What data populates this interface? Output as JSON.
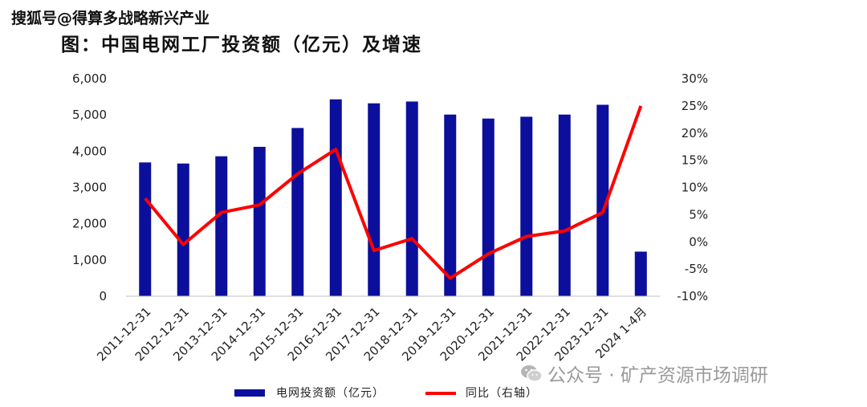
{
  "watermark_top": "搜狐号@得算多战略新兴产业",
  "watermark_bottom": "公众号 · 矿产资源市场调研",
  "chart_data": {
    "type": "bar",
    "title": "图：中国电网工厂投资额（亿元）及增速",
    "categories": [
      "2011-12-31",
      "2012-12-31",
      "2013-12-31",
      "2014-12-31",
      "2015-12-31",
      "2016-12-31",
      "2017-12-31",
      "2018-12-31",
      "2019-12-31",
      "2020-12-31",
      "2021-12-31",
      "2022-12-31",
      "2023-12-31",
      "2024 1-4月"
    ],
    "series": [
      {
        "name": "电网投资额（亿元）",
        "type": "bar",
        "axis": "left",
        "color": "#0b0f9c",
        "values": [
          3690,
          3660,
          3860,
          4120,
          4640,
          5430,
          5320,
          5370,
          5010,
          4900,
          4950,
          5010,
          5280,
          1230
        ]
      },
      {
        "name": "同比（右轴）",
        "type": "line",
        "axis": "right",
        "color": "#ff0000",
        "values": [
          8.0,
          -0.5,
          5.4,
          6.8,
          12.5,
          17.0,
          -1.6,
          0.6,
          -6.7,
          -2.2,
          1.0,
          2.0,
          5.4,
          25.0
        ]
      }
    ],
    "y_left": {
      "min": 0,
      "max": 6000,
      "ticks": [
        "0",
        "1,000",
        "2,000",
        "3,000",
        "4,000",
        "5,000",
        "6,000"
      ]
    },
    "y_right": {
      "min": -10,
      "max": 30,
      "ticks": [
        "-10%",
        "-5%",
        "0%",
        "5%",
        "10%",
        "15%",
        "20%",
        "25%",
        "30%"
      ]
    },
    "legend": "bottom"
  }
}
